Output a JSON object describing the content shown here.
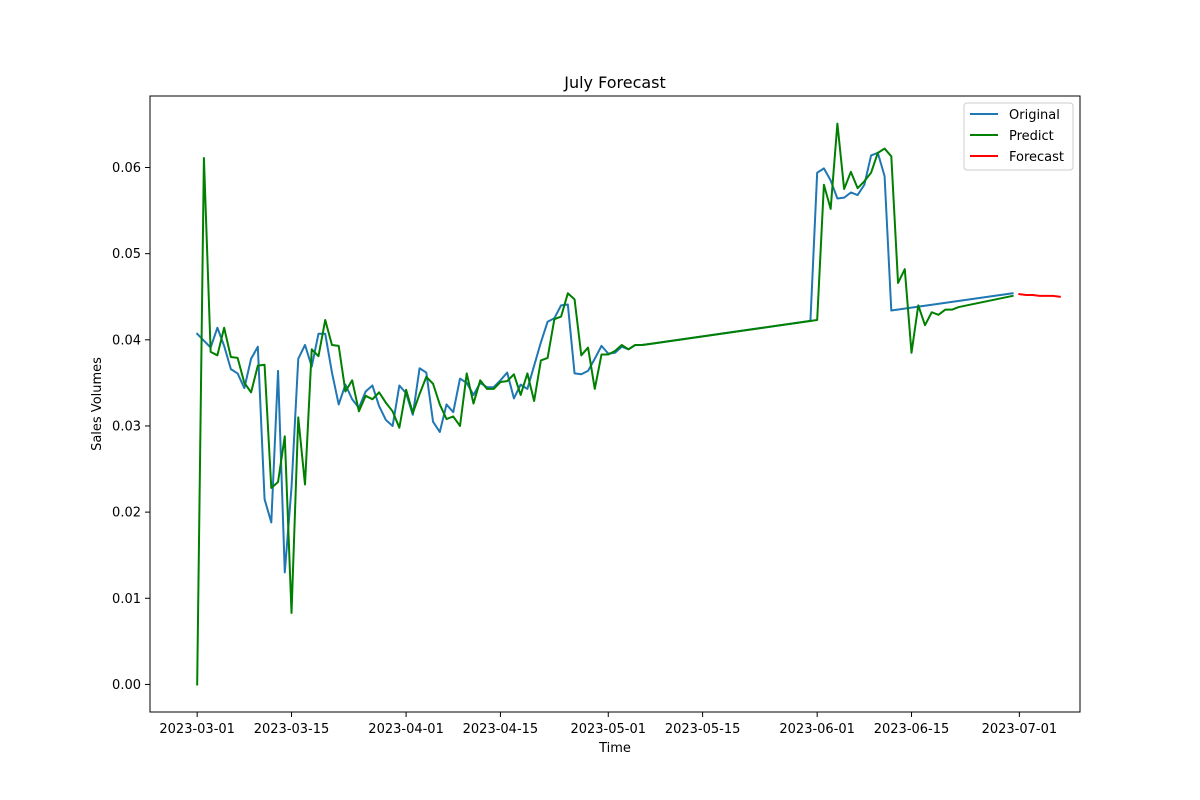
{
  "chart_data": {
    "type": "line",
    "title": "July Forecast",
    "xlabel": "Time",
    "ylabel": "Sales Volumes",
    "grid": false,
    "legend_position": "top-right",
    "xlim": [
      "2023-02-22",
      "2023-07-10"
    ],
    "ylim": [
      -0.0032,
      0.0683
    ],
    "x_ticks": [
      "2023-03-01",
      "2023-03-15",
      "2023-04-01",
      "2023-04-15",
      "2023-05-01",
      "2023-05-15",
      "2023-06-01",
      "2023-06-15",
      "2023-07-01"
    ],
    "y_ticks": [
      "0.00",
      "0.01",
      "0.02",
      "0.03",
      "0.04",
      "0.05",
      "0.06"
    ],
    "series": [
      {
        "name": "Original",
        "color": "#1f77b4",
        "points": [
          [
            "2023-03-01",
            0.0407
          ],
          [
            "2023-03-02",
            0.0399
          ],
          [
            "2023-03-03",
            0.0391
          ],
          [
            "2023-03-04",
            0.0414
          ],
          [
            "2023-03-05",
            0.0393
          ],
          [
            "2023-03-06",
            0.0366
          ],
          [
            "2023-03-07",
            0.0361
          ],
          [
            "2023-03-08",
            0.0344
          ],
          [
            "2023-03-09",
            0.0378
          ],
          [
            "2023-03-10",
            0.0392
          ],
          [
            "2023-03-11",
            0.0215
          ],
          [
            "2023-03-12",
            0.0188
          ],
          [
            "2023-03-13",
            0.0364
          ],
          [
            "2023-03-14",
            0.013
          ],
          [
            "2023-03-15",
            0.0229
          ],
          [
            "2023-03-16",
            0.0378
          ],
          [
            "2023-03-17",
            0.0394
          ],
          [
            "2023-03-18",
            0.0369
          ],
          [
            "2023-03-19",
            0.0407
          ],
          [
            "2023-03-20",
            0.0407
          ],
          [
            "2023-03-21",
            0.0362
          ],
          [
            "2023-03-22",
            0.0325
          ],
          [
            "2023-03-23",
            0.0348
          ],
          [
            "2023-03-24",
            0.0331
          ],
          [
            "2023-03-25",
            0.0321
          ],
          [
            "2023-03-26",
            0.034
          ],
          [
            "2023-03-27",
            0.0347
          ],
          [
            "2023-03-28",
            0.0323
          ],
          [
            "2023-03-29",
            0.0307
          ],
          [
            "2023-03-30",
            0.03
          ],
          [
            "2023-03-31",
            0.0347
          ],
          [
            "2023-04-01",
            0.0338
          ],
          [
            "2023-04-02",
            0.0313
          ],
          [
            "2023-04-03",
            0.0367
          ],
          [
            "2023-04-04",
            0.0362
          ],
          [
            "2023-04-05",
            0.0305
          ],
          [
            "2023-04-06",
            0.0293
          ],
          [
            "2023-04-07",
            0.0325
          ],
          [
            "2023-04-08",
            0.0316
          ],
          [
            "2023-04-09",
            0.0355
          ],
          [
            "2023-04-10",
            0.035
          ],
          [
            "2023-04-11",
            0.0336
          ],
          [
            "2023-04-12",
            0.035
          ],
          [
            "2023-04-13",
            0.0345
          ],
          [
            "2023-04-14",
            0.0345
          ],
          [
            "2023-04-15",
            0.0353
          ],
          [
            "2023-04-16",
            0.0362
          ],
          [
            "2023-04-17",
            0.0332
          ],
          [
            "2023-04-18",
            0.0348
          ],
          [
            "2023-04-19",
            0.0343
          ],
          [
            "2023-04-20",
            0.037
          ],
          [
            "2023-04-21",
            0.0397
          ],
          [
            "2023-04-22",
            0.0421
          ],
          [
            "2023-04-23",
            0.0425
          ],
          [
            "2023-04-24",
            0.044
          ],
          [
            "2023-04-25",
            0.0441
          ],
          [
            "2023-04-26",
            0.0361
          ],
          [
            "2023-04-27",
            0.036
          ],
          [
            "2023-04-28",
            0.0364
          ],
          [
            "2023-04-29",
            0.0378
          ],
          [
            "2023-04-30",
            0.0393
          ],
          [
            "2023-05-01",
            0.0384
          ],
          [
            "2023-05-02",
            0.0385
          ],
          [
            "2023-05-03",
            0.0392
          ],
          [
            "2023-05-04",
            0.0389
          ],
          [
            "2023-05-05",
            0.0394
          ],
          [
            "2023-05-06",
            0.0394
          ],
          [
            "2023-05-07",
            0.0395
          ],
          [
            "2023-05-31",
            0.0422
          ],
          [
            "2023-06-01",
            0.0594
          ],
          [
            "2023-06-02",
            0.0599
          ],
          [
            "2023-06-03",
            0.0585
          ],
          [
            "2023-06-04",
            0.0564
          ],
          [
            "2023-06-05",
            0.0565
          ],
          [
            "2023-06-06",
            0.0571
          ],
          [
            "2023-06-07",
            0.0568
          ],
          [
            "2023-06-08",
            0.058
          ],
          [
            "2023-06-09",
            0.0614
          ],
          [
            "2023-06-10",
            0.0617
          ],
          [
            "2023-06-11",
            0.059
          ],
          [
            "2023-06-12",
            0.0434
          ],
          [
            "2023-06-30",
            0.0454
          ]
        ]
      },
      {
        "name": "Predict",
        "color": "#008000",
        "points": [
          [
            "2023-03-01",
            0.0
          ],
          [
            "2023-03-02",
            0.0611
          ],
          [
            "2023-03-03",
            0.0386
          ],
          [
            "2023-03-04",
            0.0382
          ],
          [
            "2023-03-05",
            0.0414
          ],
          [
            "2023-03-06",
            0.038
          ],
          [
            "2023-03-07",
            0.0379
          ],
          [
            "2023-03-08",
            0.035
          ],
          [
            "2023-03-09",
            0.0339
          ],
          [
            "2023-03-10",
            0.037
          ],
          [
            "2023-03-11",
            0.0371
          ],
          [
            "2023-03-12",
            0.0228
          ],
          [
            "2023-03-13",
            0.0235
          ],
          [
            "2023-03-14",
            0.0288
          ],
          [
            "2023-03-15",
            0.0083
          ],
          [
            "2023-03-16",
            0.031
          ],
          [
            "2023-03-17",
            0.0232
          ],
          [
            "2023-03-18",
            0.0389
          ],
          [
            "2023-03-19",
            0.0381
          ],
          [
            "2023-03-20",
            0.0423
          ],
          [
            "2023-03-21",
            0.0394
          ],
          [
            "2023-03-22",
            0.0393
          ],
          [
            "2023-03-23",
            0.034
          ],
          [
            "2023-03-24",
            0.0353
          ],
          [
            "2023-03-25",
            0.0317
          ],
          [
            "2023-03-26",
            0.0335
          ],
          [
            "2023-03-27",
            0.0331
          ],
          [
            "2023-03-28",
            0.0339
          ],
          [
            "2023-03-29",
            0.0327
          ],
          [
            "2023-03-30",
            0.0317
          ],
          [
            "2023-03-31",
            0.0298
          ],
          [
            "2023-04-01",
            0.0342
          ],
          [
            "2023-04-02",
            0.0315
          ],
          [
            "2023-04-03",
            0.0337
          ],
          [
            "2023-04-04",
            0.0357
          ],
          [
            "2023-04-05",
            0.0349
          ],
          [
            "2023-04-06",
            0.0325
          ],
          [
            "2023-04-07",
            0.0308
          ],
          [
            "2023-04-08",
            0.0311
          ],
          [
            "2023-04-09",
            0.03
          ],
          [
            "2023-04-10",
            0.0361
          ],
          [
            "2023-04-11",
            0.0326
          ],
          [
            "2023-04-12",
            0.0353
          ],
          [
            "2023-04-13",
            0.0343
          ],
          [
            "2023-04-14",
            0.0343
          ],
          [
            "2023-04-15",
            0.0351
          ],
          [
            "2023-04-16",
            0.0352
          ],
          [
            "2023-04-17",
            0.036
          ],
          [
            "2023-04-18",
            0.0336
          ],
          [
            "2023-04-19",
            0.0361
          ],
          [
            "2023-04-20",
            0.0329
          ],
          [
            "2023-04-21",
            0.0376
          ],
          [
            "2023-04-22",
            0.0379
          ],
          [
            "2023-04-23",
            0.0424
          ],
          [
            "2023-04-24",
            0.0427
          ],
          [
            "2023-04-25",
            0.0454
          ],
          [
            "2023-04-26",
            0.0447
          ],
          [
            "2023-04-27",
            0.0382
          ],
          [
            "2023-04-28",
            0.0391
          ],
          [
            "2023-04-29",
            0.0343
          ],
          [
            "2023-04-30",
            0.0383
          ],
          [
            "2023-05-01",
            0.0383
          ],
          [
            "2023-05-02",
            0.0387
          ],
          [
            "2023-05-03",
            0.0394
          ],
          [
            "2023-05-04",
            0.0389
          ],
          [
            "2023-05-05",
            0.0394
          ],
          [
            "2023-05-06",
            0.0394
          ],
          [
            "2023-05-07",
            0.0395
          ],
          [
            "2023-06-01",
            0.0423
          ],
          [
            "2023-06-02",
            0.058
          ],
          [
            "2023-06-03",
            0.0552
          ],
          [
            "2023-06-04",
            0.0651
          ],
          [
            "2023-06-05",
            0.0575
          ],
          [
            "2023-06-06",
            0.0595
          ],
          [
            "2023-06-07",
            0.0576
          ],
          [
            "2023-06-08",
            0.0584
          ],
          [
            "2023-06-09",
            0.0594
          ],
          [
            "2023-06-10",
            0.0617
          ],
          [
            "2023-06-11",
            0.0622
          ],
          [
            "2023-06-12",
            0.0613
          ],
          [
            "2023-06-13",
            0.0466
          ],
          [
            "2023-06-14",
            0.0482
          ],
          [
            "2023-06-15",
            0.0385
          ],
          [
            "2023-06-16",
            0.044
          ],
          [
            "2023-06-17",
            0.0417
          ],
          [
            "2023-06-18",
            0.0432
          ],
          [
            "2023-06-19",
            0.0429
          ],
          [
            "2023-06-20",
            0.0435
          ],
          [
            "2023-06-21",
            0.0435
          ],
          [
            "2023-06-22",
            0.0438
          ],
          [
            "2023-06-30",
            0.0451
          ]
        ]
      },
      {
        "name": "Forecast",
        "color": "#ff0000",
        "points": [
          [
            "2023-07-01",
            0.0453
          ],
          [
            "2023-07-02",
            0.0452
          ],
          [
            "2023-07-03",
            0.0452
          ],
          [
            "2023-07-04",
            0.0451
          ],
          [
            "2023-07-05",
            0.0451
          ],
          [
            "2023-07-06",
            0.0451
          ],
          [
            "2023-07-07",
            0.045
          ]
        ]
      }
    ]
  }
}
